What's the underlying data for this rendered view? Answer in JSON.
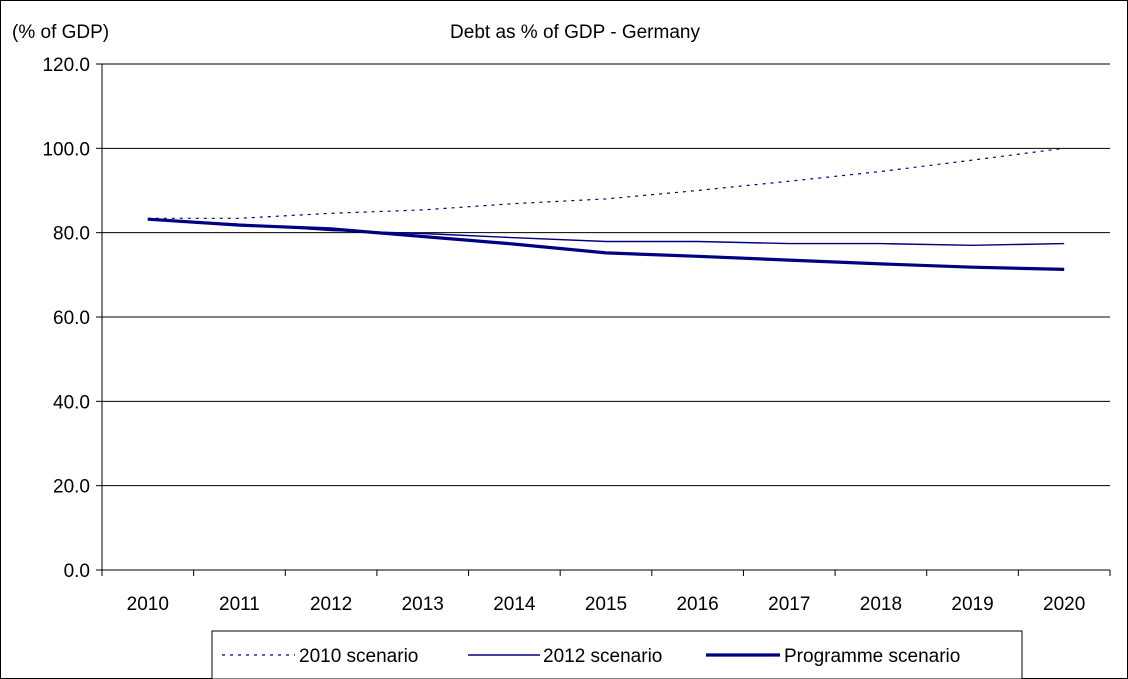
{
  "chart_data": {
    "type": "line",
    "title": "Debt as % of GDP - Germany",
    "ylabel": "(% of GDP)",
    "xlabel": "",
    "categories": [
      "2010",
      "2011",
      "2012",
      "2013",
      "2014",
      "2015",
      "2016",
      "2017",
      "2018",
      "2019",
      "2020"
    ],
    "ylim": [
      0,
      120
    ],
    "yticks": [
      "0.0",
      "20.0",
      "40.0",
      "60.0",
      "80.0",
      "100.0",
      "120.0"
    ],
    "ytick_values": [
      0,
      20,
      40,
      60,
      80,
      100,
      120
    ],
    "grid": true,
    "legend_position": "bottom",
    "series": [
      {
        "name": "2010 scenario",
        "style": "dotted",
        "color": "#000080",
        "values": [
          83.4,
          83.4,
          84.6,
          85.4,
          86.9,
          88.0,
          90.0,
          92.2,
          94.5,
          97.2,
          100.0
        ]
      },
      {
        "name": "2012 scenario",
        "style": "thin",
        "color": "#000080",
        "values": [
          83.2,
          82.0,
          80.5,
          79.8,
          78.8,
          77.9,
          77.9,
          77.4,
          77.4,
          77.0,
          77.4
        ]
      },
      {
        "name": "Programme scenario",
        "style": "thick",
        "color": "#000080",
        "values": [
          83.2,
          81.8,
          80.9,
          79.1,
          77.3,
          75.2,
          74.4,
          73.5,
          72.6,
          71.8,
          71.3
        ]
      }
    ]
  }
}
